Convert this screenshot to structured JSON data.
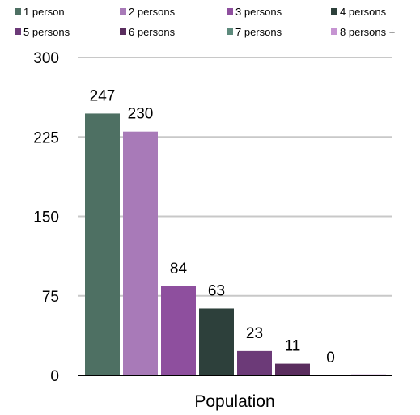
{
  "chart_data": {
    "type": "bar",
    "categories": [
      "Population"
    ],
    "xlabel": "Population",
    "ylabel": "",
    "ylim": [
      0,
      300
    ],
    "yticks": [
      0,
      75,
      150,
      225,
      300
    ],
    "grid": true,
    "legend_position": "top",
    "series": [
      {
        "name": "1 person",
        "values": [
          247
        ],
        "color": "#4e7063",
        "label": "247"
      },
      {
        "name": "2 persons",
        "values": [
          230
        ],
        "color": "#a87ab8",
        "label": "230"
      },
      {
        "name": "3 persons",
        "values": [
          84
        ],
        "color": "#8e4f9e",
        "label": "84"
      },
      {
        "name": "4 persons",
        "values": [
          63
        ],
        "color": "#2d403b",
        "label": "63"
      },
      {
        "name": "5 persons",
        "values": [
          23
        ],
        "color": "#6c3a78",
        "label": "23"
      },
      {
        "name": "6 persons",
        "values": [
          11
        ],
        "color": "#5a2d5e",
        "label": "11"
      },
      {
        "name": "7 persons",
        "values": [
          0
        ],
        "color": "#5d8a7c",
        "label": "0"
      },
      {
        "name": "8 persons +",
        "values": [
          1
        ],
        "color": "#c694d2",
        "label": ""
      }
    ]
  }
}
